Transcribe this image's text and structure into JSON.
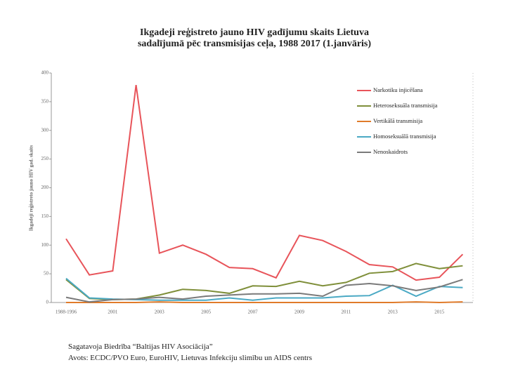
{
  "chart_data": {
    "type": "line",
    "title": [
      "Ikgadeji reģistreto jauno HIV gadījumu skaits Lietuva",
      "sadalījumā pēc transmisijas ceļa, 1988 2017 (1.janvāris)"
    ],
    "y_label": "Ikgadeji reģistreto jauno HIV gad. skaits",
    "categories": [
      "1988-1996",
      null,
      "2001",
      null,
      "2003",
      null,
      "2005",
      null,
      "2007",
      null,
      "2009",
      null,
      "2011",
      null,
      "2013",
      null,
      "2015",
      null
    ],
    "series": [
      {
        "name": "Narkotiku injicēšana",
        "color": "#e8545a",
        "values": [
          111,
          48,
          55,
          379,
          86,
          100,
          84,
          61,
          59,
          43,
          117,
          108,
          89,
          66,
          62,
          39,
          44,
          84
        ]
      },
      {
        "name": "Heteroseksuāla transmisija",
        "color": "#7f8f3a",
        "values": [
          40,
          7,
          5,
          6,
          13,
          23,
          21,
          16,
          29,
          28,
          37,
          29,
          35,
          51,
          54,
          68,
          59,
          64
        ]
      },
      {
        "name": "Vertikālā transmisija",
        "color": "#e07b2a",
        "values": [
          0,
          0,
          0,
          0,
          1,
          0,
          0,
          0,
          0,
          0,
          0,
          0,
          0,
          0,
          0,
          1,
          0,
          1
        ]
      },
      {
        "name": "Homoseksuālā transmisija",
        "color": "#4aa9c4",
        "values": [
          42,
          8,
          6,
          5,
          4,
          4,
          4,
          8,
          4,
          8,
          8,
          8,
          11,
          12,
          30,
          11,
          28,
          26
        ]
      },
      {
        "name": "Nenoskaidrots",
        "color": "#7a7a7a",
        "values": [
          9,
          1,
          5,
          6,
          9,
          6,
          11,
          13,
          15,
          15,
          16,
          11,
          30,
          33,
          29,
          21,
          27,
          40
        ]
      }
    ],
    "ylim": [
      0,
      400
    ],
    "yticks": [
      0,
      50,
      100,
      150,
      200,
      250,
      300,
      350,
      400
    ],
    "grid": false,
    "legend": "upper right"
  },
  "footer": [
    "Sagatavoja Biedrība “Baltijas HIV Asociācija”",
    "Avots: ECDC/PVO Euro, EuroHIV, Lietuvas Infekciju slimību un AIDS centrs"
  ]
}
